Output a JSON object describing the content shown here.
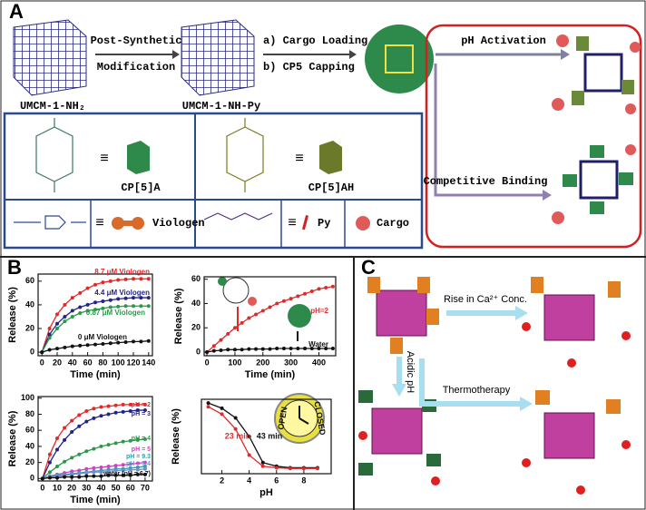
{
  "panel_a": {
    "label": "A",
    "mof1": "UMCM-1-NH₂",
    "step1": [
      "Post-Synthetic",
      "Modification"
    ],
    "mof2": "UMCM-1-NH-Py",
    "step2": [
      "a) Cargo Loading",
      "b) CP5 Capping"
    ],
    "activation": "pH Activation",
    "binding": "Competitive Binding",
    "legend": {
      "cp5a": "CP[5]A",
      "cp5ah": "CP[5]AH",
      "viologen": "Viologen",
      "py": "Py",
      "cargo": "Cargo",
      "equiv": "≡"
    }
  },
  "panel_b": {
    "label": "B"
  },
  "panel_c": {
    "label": "C",
    "ca": "Rise in Ca²⁺ Conc.",
    "acid": "Acidic pH",
    "thermo": "Thermotherapy"
  },
  "chart_data": [
    {
      "type": "line",
      "xlabel": "Time (min)",
      "ylabel": "Release (%)",
      "x": [
        0,
        10,
        20,
        30,
        40,
        50,
        60,
        70,
        80,
        90,
        100,
        110,
        120,
        130,
        140
      ],
      "xlim": [
        -5,
        145
      ],
      "xticks": [
        0,
        20,
        40,
        60,
        80,
        100,
        120,
        140
      ],
      "ylim": [
        -3,
        66
      ],
      "yticks": [
        0,
        20,
        40,
        60
      ],
      "series": [
        {
          "name": "8.7 μM Viologen",
          "color": "#e02a2a",
          "values": [
            0,
            20,
            32,
            40,
            46,
            50,
            54,
            57,
            59,
            60,
            61,
            61.5,
            62,
            62,
            62
          ]
        },
        {
          "name": "4.4 μM Viologen",
          "color": "#23238c",
          "values": [
            0,
            15,
            24,
            30,
            35,
            38,
            40,
            42,
            43,
            44,
            45,
            45.5,
            46,
            46,
            46
          ]
        },
        {
          "name": "0.87 μM Viologen",
          "color": "#2a9a48",
          "values": [
            0,
            12,
            20,
            26,
            30,
            33,
            35,
            36,
            37,
            38,
            38.5,
            39,
            39,
            39,
            39
          ]
        },
        {
          "name": "0 μM Viologen",
          "color": "#111111",
          "values": [
            0,
            2,
            3,
            4,
            5,
            5.5,
            6,
            6.5,
            7,
            7.5,
            8,
            8.5,
            9,
            9,
            9.5
          ]
        }
      ]
    },
    {
      "type": "line",
      "xlabel": "Time (min)",
      "ylabel": "Release (%)",
      "x": [
        0,
        25,
        50,
        75,
        100,
        125,
        150,
        175,
        200,
        225,
        250,
        275,
        300,
        325,
        350,
        375,
        400,
        425,
        450
      ],
      "xlim": [
        -10,
        460
      ],
      "xticks": [
        0,
        100,
        200,
        300,
        400
      ],
      "ylim": [
        -3,
        62
      ],
      "yticks": [
        0,
        20,
        40,
        60
      ],
      "series": [
        {
          "name": "pH=2",
          "color": "#e02a2a",
          "values": [
            0,
            5,
            10,
            15,
            20,
            24,
            28,
            31,
            34,
            37,
            40,
            42,
            44,
            46,
            48,
            50,
            52,
            53,
            54
          ]
        },
        {
          "name": "Water",
          "color": "#111111",
          "values": [
            0,
            1,
            1.5,
            2,
            2,
            2,
            2.5,
            2.5,
            2.5,
            2.5,
            3,
            3,
            3,
            3,
            3,
            3,
            3,
            3,
            3
          ]
        }
      ]
    },
    {
      "type": "line",
      "xlabel": "Time (min)",
      "ylabel": "Release (%)",
      "x": [
        0,
        5,
        10,
        15,
        20,
        25,
        30,
        35,
        40,
        45,
        50,
        55,
        60,
        65,
        70
      ],
      "xlim": [
        -3,
        75
      ],
      "xticks": [
        0,
        10,
        20,
        30,
        40,
        50,
        60,
        70
      ],
      "ylim": [
        -3,
        102
      ],
      "yticks": [
        0,
        20,
        40,
        60,
        80,
        100
      ],
      "series": [
        {
          "name": "pH = 2",
          "color": "#e02a2a",
          "values": [
            0,
            30,
            50,
            63,
            72,
            79,
            84,
            87,
            89,
            90,
            91,
            92,
            92,
            92,
            92
          ]
        },
        {
          "name": "pH = 3",
          "color": "#23238c",
          "values": [
            0,
            20,
            36,
            48,
            58,
            65,
            71,
            75,
            78,
            80,
            82,
            83,
            84,
            85,
            85
          ]
        },
        {
          "name": "pH = 4",
          "color": "#2a9a48",
          "values": [
            0,
            8,
            15,
            21,
            26,
            30,
            34,
            37,
            40,
            42,
            44,
            46,
            47,
            48,
            49
          ]
        },
        {
          "name": "pH = 5",
          "color": "#d040c0",
          "values": [
            0,
            3,
            5,
            7,
            9,
            10,
            12,
            13,
            14,
            15,
            16,
            17,
            18,
            19,
            20
          ]
        },
        {
          "name": "pH = 9.3",
          "color": "#2aa0b0",
          "values": [
            0,
            2,
            4,
            5,
            6,
            7,
            8,
            9,
            10,
            11,
            12,
            12,
            13,
            14,
            15
          ]
        },
        {
          "name": "pH = 7.4",
          "color": "#7090c8",
          "values": [
            0,
            2,
            3,
            4,
            5,
            6,
            7,
            8,
            8,
            9,
            10,
            10,
            11,
            11,
            12
          ]
        },
        {
          "name": "water (pH = 6.7)",
          "color": "#111111",
          "values": [
            0,
            1,
            1,
            2,
            2,
            2,
            3,
            3,
            3,
            4,
            4,
            4,
            4,
            5,
            5
          ]
        }
      ]
    },
    {
      "type": "line",
      "xlabel": "pH",
      "ylabel": "Release (%)",
      "x": [
        1,
        2,
        3,
        4,
        5,
        6,
        7,
        8,
        9
      ],
      "xlim": [
        0.5,
        10
      ],
      "xticks": [
        2,
        4,
        6,
        8
      ],
      "ylim": [
        0,
        100
      ],
      "annotations": [
        "23 min",
        "43 min",
        "OPEN",
        "CLOSED"
      ],
      "series": [
        {
          "color": "#111111",
          "values": [
            95,
            88,
            75,
            50,
            15,
            10,
            8,
            8,
            8
          ]
        },
        {
          "color": "#e02a2a",
          "values": [
            90,
            80,
            60,
            25,
            10,
            8,
            7,
            7,
            7
          ]
        }
      ]
    }
  ]
}
